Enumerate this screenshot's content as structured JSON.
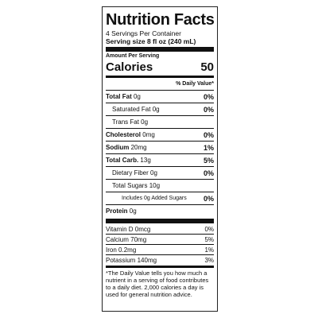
{
  "title": "Nutrition Facts",
  "servings": "4 Servings Per Container",
  "serving_size": "Serving size 8 fl oz (240 mL)",
  "amount_per_serving": "Amount Per Serving",
  "calories": {
    "label": "Calories",
    "value": "50"
  },
  "daily_value_header": "% Daily Value*",
  "nutrients": [
    {
      "name": "Total Fat",
      "amount": "0g",
      "dv": "0%"
    },
    {
      "name": "Saturated Fat",
      "amount": "0g",
      "dv": "0%"
    },
    {
      "name": "Trans Fat",
      "amount": "0g"
    },
    {
      "name": "Cholesterol",
      "amount": "0mg",
      "dv": "0%"
    },
    {
      "name": "Sodium",
      "amount": "20mg",
      "dv": "1%"
    },
    {
      "name": "Total Carb.",
      "amount": "13g",
      "dv": "5%"
    },
    {
      "name": "Dietary Fiber",
      "amount": "0g",
      "dv": "0%"
    },
    {
      "name": "Total Sugars",
      "amount": "10g"
    },
    {
      "name": "Includes 0g Added Sugars",
      "dv": "0%"
    },
    {
      "name": "Protein",
      "amount": "0g"
    }
  ],
  "vitamins": [
    {
      "name": "Vitamin D",
      "amount": "0mcg",
      "dv": "0%"
    },
    {
      "name": "Calcium",
      "amount": "70mg",
      "dv": "5%"
    },
    {
      "name": "Iron",
      "amount": "0.2mg",
      "dv": "1%"
    },
    {
      "name": "Potassium",
      "amount": "140mg",
      "dv": "3%"
    }
  ],
  "footnote": "*The Daily Value tells you how much a nutrient in a serving of food contributes to a daily diet. 2,000 calories a day is used for general nutrition advice."
}
